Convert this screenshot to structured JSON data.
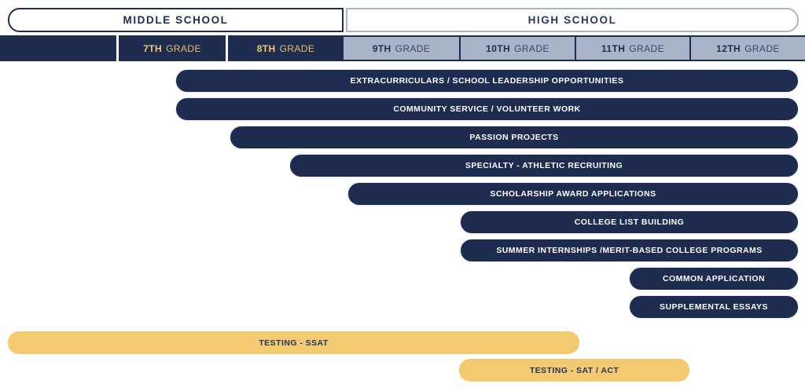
{
  "headers": {
    "middle_school": "MIDDLE SCHOOL",
    "high_school": "HIGH SCHOOL"
  },
  "grade_row": {
    "cells": [
      {
        "num": "7TH",
        "word": "GRADE"
      },
      {
        "num": "8TH",
        "word": "GRADE"
      },
      {
        "num": "9TH",
        "word": "GRADE"
      },
      {
        "num": "10TH",
        "word": "GRADE"
      },
      {
        "num": "11TH",
        "word": "GRADE"
      },
      {
        "num": "12TH",
        "word": "GRADE"
      }
    ]
  },
  "rows": [
    {
      "label": "EXTRACURRICULARS / SCHOOL LEADERSHIP OPPORTUNITIES",
      "variant": "navy",
      "span": "mid 7th grade to 12th grade"
    },
    {
      "label": "COMMUNITY SERVICE / VOLUNTEER WORK",
      "variant": "navy",
      "span": "mid 7th grade to 12th grade"
    },
    {
      "label": "PASSION PROJECTS",
      "variant": "navy",
      "span": "8th grade to 12th grade"
    },
    {
      "label": "SPECIALTY - ATHLETIC RECRUITING",
      "variant": "navy",
      "span": "mid 8th grade to 12th grade"
    },
    {
      "label": "SCHOLARSHIP AWARD APPLICATIONS",
      "variant": "navy",
      "span": "9th grade to 12th grade"
    },
    {
      "label": "COLLEGE LIST BUILDING",
      "variant": "navy",
      "span": "10th grade to 12th grade"
    },
    {
      "label": "SUMMER INTERNSHIPS /MERIT-BASED COLLEGE PROGRAMS",
      "variant": "navy",
      "span": "10th grade to 12th grade"
    },
    {
      "label": "COMMON APPLICATION",
      "variant": "navy",
      "span": "mid 11th grade to 12th grade"
    },
    {
      "label": "SUPPLEMENTAL ESSAYS",
      "variant": "navy",
      "span": "mid 11th grade to 12th grade"
    },
    {
      "label": "TESTING - SSAT",
      "variant": "gold",
      "span": "before 7th grade to end of 10th grade"
    },
    {
      "label": "TESTING - SAT / ACT",
      "variant": "gold",
      "span": "10th grade to end of 11th grade"
    }
  ],
  "colors": {
    "navy": "#1e2c4f",
    "gold": "#f3c972",
    "light_blue": "#a8b5c9",
    "bar_text_light": "#fdfdfd",
    "grade_gold_text": "#f2c870",
    "background": "#ffffff"
  }
}
